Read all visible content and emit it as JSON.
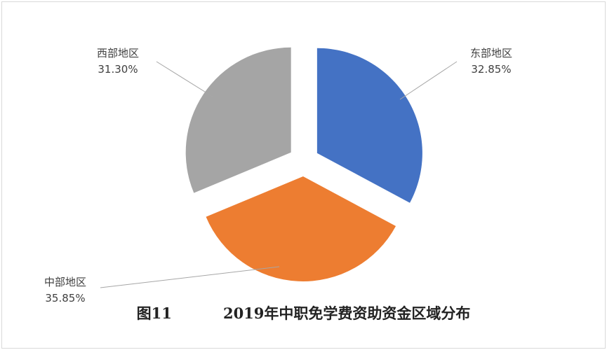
{
  "chart_data": {
    "type": "pie",
    "title": "",
    "categories": [
      "东部地区",
      "中部地区",
      "西部地区"
    ],
    "values": [
      32.85,
      35.85,
      31.3
    ],
    "value_labels": [
      "32.85%",
      "35.85%",
      "31.30%"
    ],
    "exploded": true,
    "legend": "none",
    "colors": [
      "#4472c4",
      "#ed7d31",
      "#a5a5a5"
    ]
  },
  "caption": {
    "figure_no": "图11",
    "title": "2019年中职免学费资助资金区域分布"
  }
}
